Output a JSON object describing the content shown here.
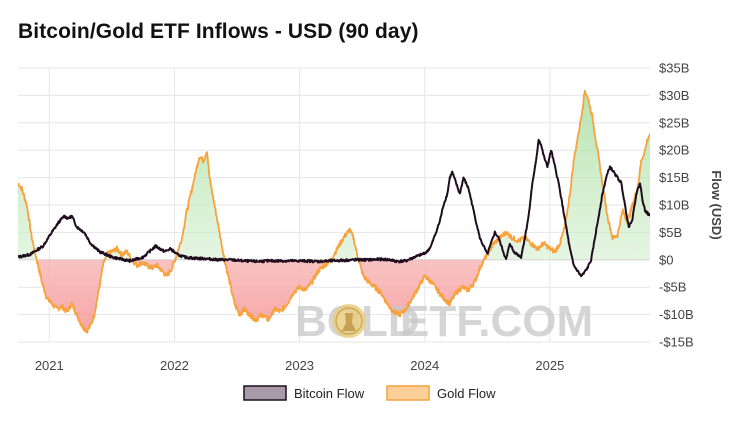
{
  "title": "Bitcoin/Gold ETF Inflows - USD (90 day)",
  "watermark": {
    "left": "BOLD",
    "right": "ETF.COM"
  },
  "colors": {
    "bitcoin": "#1f0d1f",
    "gold": "#f7a23c",
    "positive_fill": "#b9e6b2",
    "negative_fill": "#f8b3b3",
    "grid": "#e6e6e6"
  },
  "chart_data": {
    "type": "line",
    "title": "Bitcoin/Gold ETF Inflows - USD (90 day)",
    "xlabel": "",
    "ylabel": "Flow (USD)",
    "ylim": [
      -15,
      35
    ],
    "xlim": [
      2020.75,
      2025.8
    ],
    "yticks": [
      -15,
      -10,
      -5,
      0,
      5,
      10,
      15,
      20,
      25,
      30,
      35
    ],
    "ytick_labels": [
      "-$15B",
      "-$10B",
      "-$5B",
      "$0",
      "$5B",
      "$10B",
      "$15B",
      "$20B",
      "$25B",
      "$30B",
      "$35B"
    ],
    "xticks": [
      2021,
      2022,
      2023,
      2024,
      2025
    ],
    "xtick_labels": [
      "2021",
      "2022",
      "2023",
      "2024",
      "2025"
    ],
    "grid": true,
    "legend": "bottom",
    "units": "USD billions",
    "series": [
      {
        "name": "Bitcoin Flow",
        "color": "#1f0d1f",
        "points": [
          [
            2020.75,
            0.5
          ],
          [
            2020.85,
            1.0
          ],
          [
            2020.95,
            2.5
          ],
          [
            2021.02,
            5.0
          ],
          [
            2021.08,
            7.0
          ],
          [
            2021.12,
            8.0
          ],
          [
            2021.15,
            7.5
          ],
          [
            2021.18,
            8.0
          ],
          [
            2021.22,
            6.0
          ],
          [
            2021.28,
            5.0
          ],
          [
            2021.33,
            3.0
          ],
          [
            2021.4,
            1.5
          ],
          [
            2021.5,
            0.5
          ],
          [
            2021.6,
            0.0
          ],
          [
            2021.65,
            -0.2
          ],
          [
            2021.75,
            0.5
          ],
          [
            2021.8,
            1.5
          ],
          [
            2021.85,
            2.5
          ],
          [
            2021.92,
            1.5
          ],
          [
            2021.97,
            2.0
          ],
          [
            2022.02,
            1.0
          ],
          [
            2022.08,
            0.5
          ],
          [
            2022.15,
            0.3
          ],
          [
            2022.25,
            0.2
          ],
          [
            2022.35,
            0.0
          ],
          [
            2022.45,
            0.0
          ],
          [
            2022.55,
            -0.2
          ],
          [
            2022.65,
            -0.3
          ],
          [
            2022.75,
            -0.2
          ],
          [
            2022.85,
            -0.2
          ],
          [
            2022.95,
            -0.2
          ],
          [
            2023.05,
            -0.2
          ],
          [
            2023.15,
            -0.3
          ],
          [
            2023.25,
            -0.2
          ],
          [
            2023.35,
            -0.1
          ],
          [
            2023.45,
            0.0
          ],
          [
            2023.55,
            0.0
          ],
          [
            2023.65,
            0.1
          ],
          [
            2023.72,
            0.0
          ],
          [
            2023.78,
            -0.3
          ],
          [
            2023.85,
            -0.2
          ],
          [
            2023.92,
            0.5
          ],
          [
            2023.98,
            1.0
          ],
          [
            2024.02,
            1.5
          ],
          [
            2024.05,
            2.5
          ],
          [
            2024.09,
            5.0
          ],
          [
            2024.12,
            7.0
          ],
          [
            2024.15,
            10.0
          ],
          [
            2024.18,
            12.0
          ],
          [
            2024.2,
            15.0
          ],
          [
            2024.22,
            16.0
          ],
          [
            2024.25,
            14.0
          ],
          [
            2024.28,
            12.0
          ],
          [
            2024.31,
            15.0
          ],
          [
            2024.35,
            13.0
          ],
          [
            2024.38,
            10.0
          ],
          [
            2024.41,
            7.0
          ],
          [
            2024.44,
            4.0
          ],
          [
            2024.47,
            2.5
          ],
          [
            2024.5,
            1.0
          ],
          [
            2024.53,
            3.0
          ],
          [
            2024.56,
            5.0
          ],
          [
            2024.59,
            4.0
          ],
          [
            2024.62,
            2.0
          ],
          [
            2024.65,
            0.0
          ],
          [
            2024.68,
            3.0
          ],
          [
            2024.71,
            1.5
          ],
          [
            2024.74,
            1.0
          ],
          [
            2024.77,
            0.5
          ],
          [
            2024.8,
            4.0
          ],
          [
            2024.83,
            8.0
          ],
          [
            2024.86,
            14.0
          ],
          [
            2024.89,
            18.0
          ],
          [
            2024.91,
            22.0
          ],
          [
            2024.93,
            21.0
          ],
          [
            2024.95,
            19.0
          ],
          [
            2024.98,
            17.0
          ],
          [
            2025.01,
            20.0
          ],
          [
            2025.04,
            17.0
          ],
          [
            2025.07,
            14.0
          ],
          [
            2025.1,
            10.0
          ],
          [
            2025.13,
            6.0
          ],
          [
            2025.16,
            2.0
          ],
          [
            2025.19,
            -1.0
          ],
          [
            2025.22,
            -2.0
          ],
          [
            2025.25,
            -3.0
          ],
          [
            2025.27,
            -2.5
          ],
          [
            2025.3,
            -1.5
          ],
          [
            2025.33,
            0.0
          ],
          [
            2025.36,
            4.0
          ],
          [
            2025.39,
            8.0
          ],
          [
            2025.42,
            12.0
          ],
          [
            2025.45,
            15.0
          ],
          [
            2025.48,
            17.0
          ],
          [
            2025.51,
            16.0
          ],
          [
            2025.54,
            15.0
          ],
          [
            2025.57,
            14.0
          ],
          [
            2025.6,
            10.0
          ],
          [
            2025.63,
            6.0
          ],
          [
            2025.66,
            7.5
          ],
          [
            2025.69,
            12.0
          ],
          [
            2025.72,
            14.0
          ],
          [
            2025.74,
            11.0
          ],
          [
            2025.76,
            9.0
          ],
          [
            2025.78,
            8.5
          ],
          [
            2025.8,
            8.0
          ]
        ]
      },
      {
        "name": "Gold Flow",
        "color": "#f7a23c",
        "points": [
          [
            2020.75,
            14.0
          ],
          [
            2020.78,
            13.0
          ],
          [
            2020.82,
            10.0
          ],
          [
            2020.86,
            4.0
          ],
          [
            2020.9,
            0.0
          ],
          [
            2020.94,
            -4.0
          ],
          [
            2020.98,
            -7.0
          ],
          [
            2021.02,
            -8.0
          ],
          [
            2021.06,
            -9.0
          ],
          [
            2021.1,
            -8.5
          ],
          [
            2021.14,
            -9.5
          ],
          [
            2021.18,
            -8.0
          ],
          [
            2021.22,
            -10.0
          ],
          [
            2021.26,
            -12.0
          ],
          [
            2021.3,
            -13.0
          ],
          [
            2021.33,
            -12.0
          ],
          [
            2021.36,
            -10.0
          ],
          [
            2021.4,
            -5.0
          ],
          [
            2021.43,
            -1.0
          ],
          [
            2021.46,
            1.0
          ],
          [
            2021.5,
            1.5
          ],
          [
            2021.54,
            2.0
          ],
          [
            2021.58,
            1.0
          ],
          [
            2021.62,
            1.5
          ],
          [
            2021.66,
            0.0
          ],
          [
            2021.7,
            -1.0
          ],
          [
            2021.74,
            -0.5
          ],
          [
            2021.78,
            -1.0
          ],
          [
            2021.82,
            -1.5
          ],
          [
            2021.86,
            -1.0
          ],
          [
            2021.9,
            -2.0
          ],
          [
            2021.94,
            -3.0
          ],
          [
            2021.98,
            -1.5
          ],
          [
            2022.02,
            1.0
          ],
          [
            2022.06,
            4.0
          ],
          [
            2022.1,
            9.0
          ],
          [
            2022.14,
            13.0
          ],
          [
            2022.18,
            17.0
          ],
          [
            2022.2,
            19.0
          ],
          [
            2022.23,
            18.0
          ],
          [
            2022.26,
            20.0
          ],
          [
            2022.28,
            15.0
          ],
          [
            2022.32,
            10.0
          ],
          [
            2022.36,
            5.0
          ],
          [
            2022.4,
            0.0
          ],
          [
            2022.44,
            -4.0
          ],
          [
            2022.48,
            -8.0
          ],
          [
            2022.52,
            -10.0
          ],
          [
            2022.56,
            -9.0
          ],
          [
            2022.6,
            -10.0
          ],
          [
            2022.65,
            -11.0
          ],
          [
            2022.7,
            -10.0
          ],
          [
            2022.75,
            -11.0
          ],
          [
            2022.8,
            -9.0
          ],
          [
            2022.85,
            -9.5
          ],
          [
            2022.9,
            -8.0
          ],
          [
            2022.95,
            -6.0
          ],
          [
            2023.0,
            -5.0
          ],
          [
            2023.05,
            -5.5
          ],
          [
            2023.1,
            -4.0
          ],
          [
            2023.15,
            -2.0
          ],
          [
            2023.2,
            -1.0
          ],
          [
            2023.25,
            0.0
          ],
          [
            2023.3,
            2.0
          ],
          [
            2023.35,
            4.0
          ],
          [
            2023.4,
            5.5
          ],
          [
            2023.43,
            4.0
          ],
          [
            2023.47,
            0.0
          ],
          [
            2023.51,
            -3.0
          ],
          [
            2023.55,
            -4.0
          ],
          [
            2023.6,
            -5.0
          ],
          [
            2023.65,
            -6.0
          ],
          [
            2023.7,
            -8.0
          ],
          [
            2023.75,
            -9.5
          ],
          [
            2023.8,
            -10.0
          ],
          [
            2023.85,
            -9.0
          ],
          [
            2023.9,
            -7.0
          ],
          [
            2023.95,
            -5.0
          ],
          [
            2024.0,
            -3.0
          ],
          [
            2024.05,
            -4.0
          ],
          [
            2024.1,
            -5.5
          ],
          [
            2024.15,
            -7.0
          ],
          [
            2024.2,
            -8.0
          ],
          [
            2024.25,
            -6.0
          ],
          [
            2024.3,
            -5.0
          ],
          [
            2024.35,
            -5.5
          ],
          [
            2024.4,
            -4.0
          ],
          [
            2024.45,
            -1.0
          ],
          [
            2024.5,
            1.0
          ],
          [
            2024.55,
            3.0
          ],
          [
            2024.6,
            4.0
          ],
          [
            2024.65,
            5.0
          ],
          [
            2024.7,
            4.0
          ],
          [
            2024.75,
            3.5
          ],
          [
            2024.8,
            4.0
          ],
          [
            2024.85,
            3.0
          ],
          [
            2024.9,
            2.0
          ],
          [
            2024.95,
            3.0
          ],
          [
            2025.0,
            2.0
          ],
          [
            2025.04,
            1.5
          ],
          [
            2025.08,
            3.0
          ],
          [
            2025.12,
            6.0
          ],
          [
            2025.16,
            12.0
          ],
          [
            2025.19,
            18.0
          ],
          [
            2025.22,
            22.0
          ],
          [
            2025.25,
            26.0
          ],
          [
            2025.28,
            31.0
          ],
          [
            2025.31,
            29.0
          ],
          [
            2025.34,
            26.0
          ],
          [
            2025.38,
            20.0
          ],
          [
            2025.42,
            14.0
          ],
          [
            2025.46,
            8.0
          ],
          [
            2025.5,
            4.0
          ],
          [
            2025.54,
            4.5
          ],
          [
            2025.58,
            9.0
          ],
          [
            2025.62,
            7.0
          ],
          [
            2025.66,
            10.0
          ],
          [
            2025.7,
            13.0
          ],
          [
            2025.73,
            18.0
          ],
          [
            2025.76,
            20.0
          ],
          [
            2025.78,
            22.0
          ],
          [
            2025.8,
            23.0
          ]
        ]
      }
    ]
  }
}
